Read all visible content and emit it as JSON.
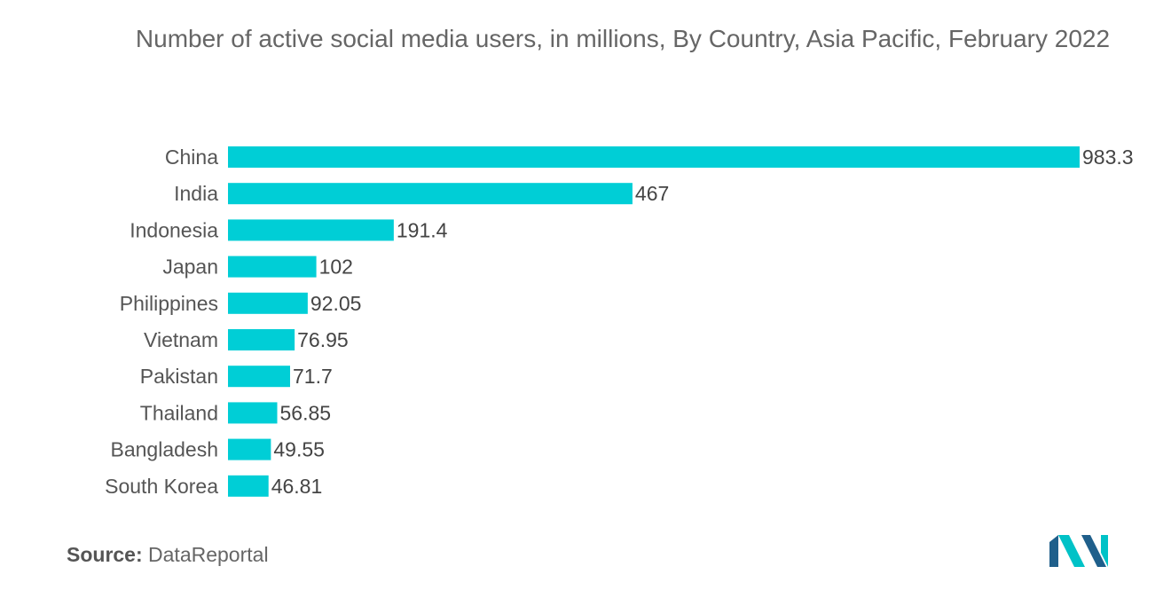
{
  "chart_data": {
    "type": "bar",
    "orientation": "horizontal",
    "title": "Number of active social media users, in millions, By Country, Asia Pacific, February 2022",
    "categories": [
      "China",
      "India",
      "Indonesia",
      "Japan",
      "Philippines",
      "Vietnam",
      "Pakistan",
      "Thailand",
      "Bangladesh",
      "South Korea"
    ],
    "values": [
      983.3,
      467,
      191.4,
      102,
      92.05,
      76.95,
      71.7,
      56.85,
      49.55,
      46.81
    ],
    "value_labels": [
      "983.3",
      "467",
      "191.4",
      "102",
      "92.05",
      "76.95",
      "71.7",
      "56.85",
      "49.55",
      "46.81"
    ],
    "xlim": [
      0,
      983.3
    ],
    "grid": false,
    "legend": "none",
    "bar_color": "#00CED6"
  },
  "source": {
    "label": "Source:",
    "text": "DataReportal"
  },
  "logo": {
    "icon": "mordor-intelligence-logo",
    "colors": [
      "#1F5F8B",
      "#00C2C7"
    ]
  }
}
